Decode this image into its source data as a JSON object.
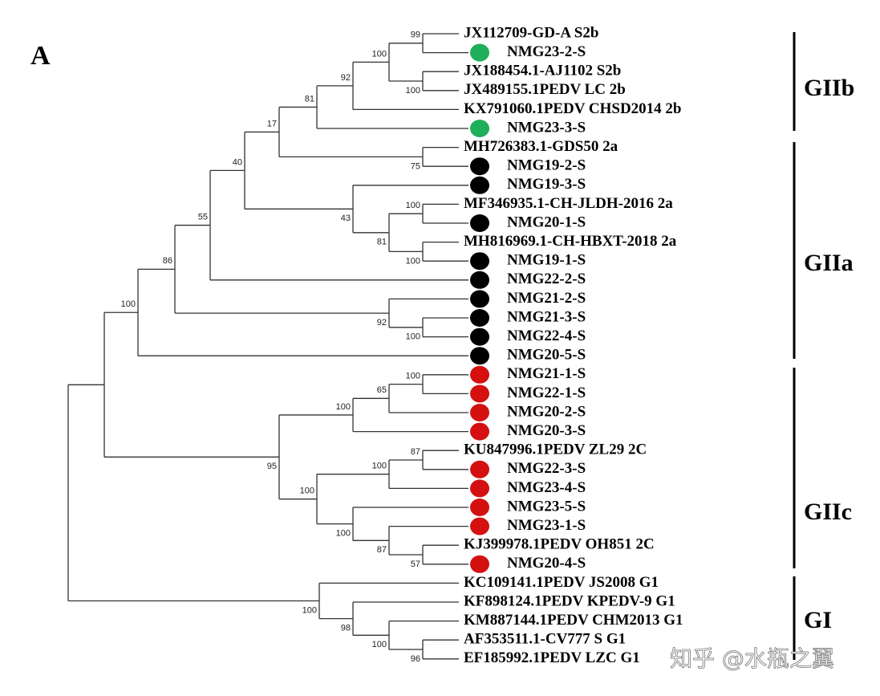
{
  "panel_label": "A",
  "leaves": [
    {
      "label": "JX112709-GD-A S2b"
    },
    {
      "label": "NMG23-2-S",
      "dot": "#1fae5a"
    },
    {
      "label": "JX188454.1-AJ1102 S2b"
    },
    {
      "label": "JX489155.1PEDV LC 2b"
    },
    {
      "label": "KX791060.1PEDV CHSD2014 2b"
    },
    {
      "label": "NMG23-3-S",
      "dot": "#1fae5a"
    },
    {
      "label": "MH726383.1-GDS50 2a"
    },
    {
      "label": "NMG19-2-S",
      "dot": "#000000"
    },
    {
      "label": "NMG19-3-S",
      "dot": "#000000"
    },
    {
      "label": "MF346935.1-CH-JLDH-2016 2a"
    },
    {
      "label": "NMG20-1-S",
      "dot": "#000000"
    },
    {
      "label": "MH816969.1-CH-HBXT-2018 2a"
    },
    {
      "label": "NMG19-1-S",
      "dot": "#000000"
    },
    {
      "label": "NMG22-2-S",
      "dot": "#000000"
    },
    {
      "label": "NMG21-2-S",
      "dot": "#000000"
    },
    {
      "label": "NMG21-3-S",
      "dot": "#000000"
    },
    {
      "label": "NMG22-4-S",
      "dot": "#000000"
    },
    {
      "label": "NMG20-5-S",
      "dot": "#000000"
    },
    {
      "label": "NMG21-1-S",
      "dot": "#d41010"
    },
    {
      "label": "NMG22-1-S",
      "dot": "#d41010"
    },
    {
      "label": "NMG20-2-S",
      "dot": "#d41010"
    },
    {
      "label": "NMG20-3-S",
      "dot": "#d41010"
    },
    {
      "label": "KU847996.1PEDV ZL29 2C"
    },
    {
      "label": "NMG22-3-S",
      "dot": "#d41010"
    },
    {
      "label": "NMG23-4-S",
      "dot": "#d41010"
    },
    {
      "label": "NMG23-5-S",
      "dot": "#d41010"
    },
    {
      "label": "NMG23-1-S",
      "dot": "#d41010"
    },
    {
      "label": "KJ399978.1PEDV OH851 2C"
    },
    {
      "label": "NMG20-4-S",
      "dot": "#d41010"
    },
    {
      "label": "KC109141.1PEDV JS2008 G1"
    },
    {
      "label": "KF898124.1PEDV KPEDV-9 G1"
    },
    {
      "label": "KM887144.1PEDV CHM2013 G1"
    },
    {
      "label": "AF353511.1-CV777 S G1"
    },
    {
      "label": "EF185992.1PEDV LZC G1"
    }
  ],
  "bootstrap": [
    99,
    100,
    100,
    92,
    81,
    75,
    17,
    100,
    100,
    81,
    43,
    40,
    55,
    100,
    92,
    86,
    100,
    100,
    65,
    100,
    87,
    100,
    57,
    87,
    100,
    100,
    95,
    96,
    100,
    98,
    100
  ],
  "groups": [
    "GIIb",
    "GIIa",
    "GIIc",
    "GI"
  ],
  "watermark": "知乎 @水瓶之翼"
}
